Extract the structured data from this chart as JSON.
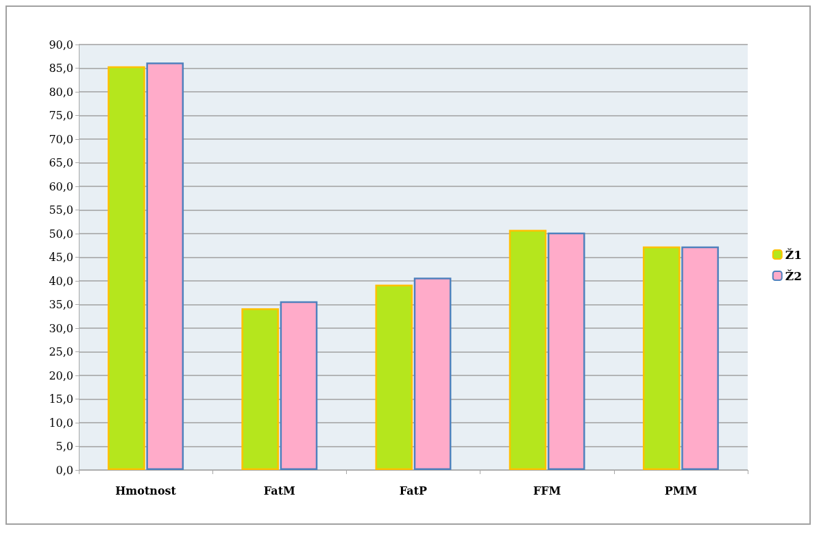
{
  "chart_data": {
    "type": "bar",
    "categories": [
      "Hmotnost",
      "FatM",
      "FatP",
      "FFM",
      "PMM"
    ],
    "series": [
      {
        "name": "Ž1",
        "color": "#b5e61d",
        "values": [
          85.4,
          34.2,
          39.2,
          50.8,
          47.3
        ]
      },
      {
        "name": "Ž2",
        "color": "#ffabc9",
        "values": [
          86.2,
          35.7,
          40.7,
          50.2,
          47.3
        ]
      }
    ],
    "ylim": [
      0,
      90
    ],
    "yticks": [
      {
        "value": 0,
        "label": "0,0"
      },
      {
        "value": 5,
        "label": "5,0"
      },
      {
        "value": 10,
        "label": "10,0"
      },
      {
        "value": 15,
        "label": "15,0"
      },
      {
        "value": 20,
        "label": "20,0"
      },
      {
        "value": 25,
        "label": "25,0"
      },
      {
        "value": 30,
        "label": "30,0"
      },
      {
        "value": 35,
        "label": "35,0"
      },
      {
        "value": 40,
        "label": "40,0"
      },
      {
        "value": 45,
        "label": "45,0"
      },
      {
        "value": 50,
        "label": "50,0"
      },
      {
        "value": 55,
        "label": "55,0"
      },
      {
        "value": 60,
        "label": "60,0"
      },
      {
        "value": 65,
        "label": "65,0"
      },
      {
        "value": 70,
        "label": "70,0"
      },
      {
        "value": 75,
        "label": "75,0"
      },
      {
        "value": 80,
        "label": "80,0"
      },
      {
        "value": 85,
        "label": "85,0"
      },
      {
        "value": 90,
        "label": "90,0"
      }
    ],
    "grid": "y",
    "legend": "right"
  }
}
